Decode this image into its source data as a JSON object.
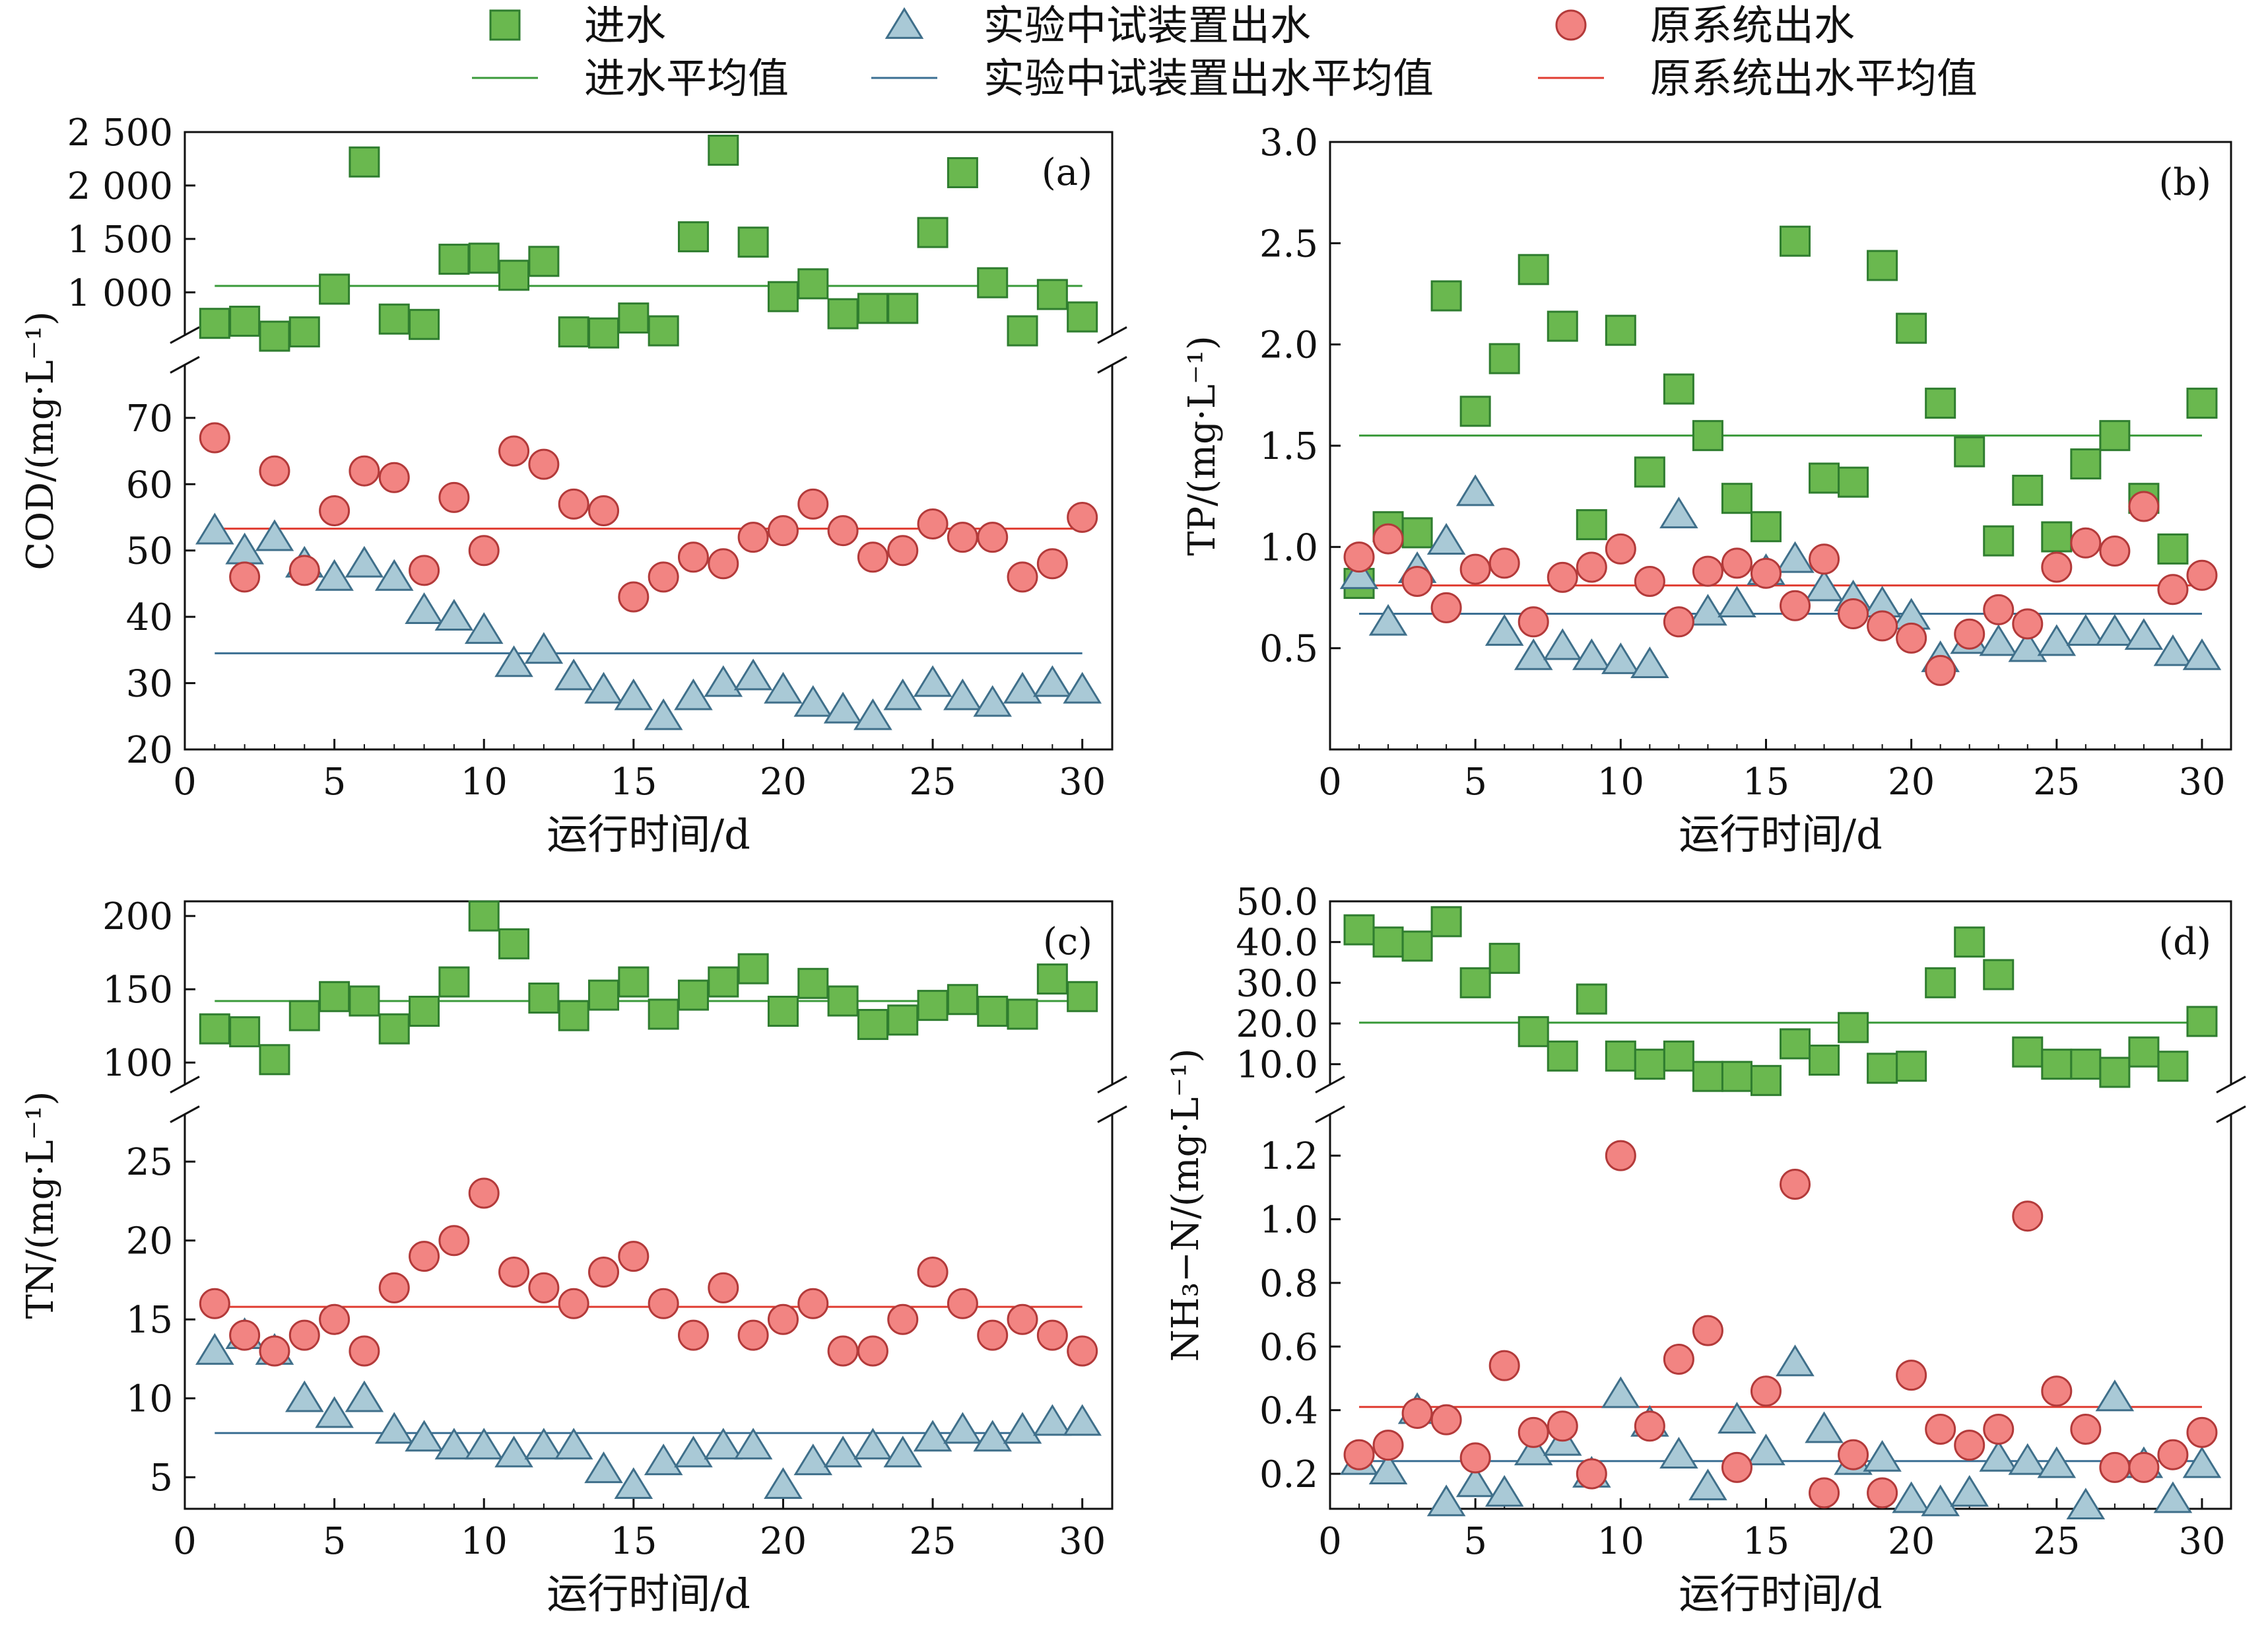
{
  "legend": {
    "items": [
      {
        "label": "进水",
        "kind": "square",
        "color": "#6ab84f"
      },
      {
        "label": "实验中试装置出水",
        "kind": "triangle",
        "color": "#a9c9d6"
      },
      {
        "label": "原系统出水",
        "kind": "circle",
        "color": "#f28482"
      },
      {
        "label": "进水平均值",
        "kind": "line",
        "color": "#3a9a3a"
      },
      {
        "label": "实验中试装置出水平均值",
        "kind": "line",
        "color": "#3b6f93"
      },
      {
        "label": "原系统出水平均值",
        "kind": "line",
        "color": "#e03c31"
      }
    ]
  },
  "colors": {
    "influent_fill": "#6ab84f",
    "influent_edge": "#2f7d2f",
    "pilot_fill": "#a9c9d6",
    "pilot_edge": "#3f6f8a",
    "original_fill": "#f28482",
    "original_edge": "#b33a3a",
    "influent_mean": "#3a9a3a",
    "pilot_mean": "#3b6f93",
    "original_mean": "#e03c31"
  },
  "chart_data": [
    {
      "id": "a",
      "type": "scatter",
      "panel_label": "(a)",
      "ylabel": "COD/(mg·L⁻¹)",
      "xlabel": "运行时间/d",
      "xlim": [
        0,
        31
      ],
      "xticks": [
        0,
        5,
        10,
        15,
        20,
        25,
        30
      ],
      "broken_axis": true,
      "upper": {
        "ylim": [
          600,
          2500
        ],
        "yticks": [
          1000,
          1500,
          2000,
          2500
        ],
        "tick_labels": [
          "1 000",
          "1 500",
          "2 000",
          "2 500"
        ]
      },
      "lower": {
        "ylim": [
          20,
          78
        ],
        "yticks": [
          20,
          30,
          40,
          50,
          60,
          70
        ],
        "tick_labels": [
          "20",
          "30",
          "40",
          "50",
          "60",
          "70"
        ]
      },
      "x": [
        1,
        2,
        3,
        4,
        5,
        6,
        7,
        8,
        9,
        10,
        11,
        12,
        13,
        14,
        15,
        16,
        17,
        18,
        19,
        20,
        21,
        22,
        23,
        24,
        25,
        26,
        27,
        28,
        29,
        30
      ],
      "series": [
        {
          "name": "进水",
          "marker": "square",
          "axis": "upper",
          "values": [
            710,
            730,
            590,
            630,
            1030,
            2220,
            750,
            700,
            1310,
            1320,
            1160,
            1290,
            630,
            620,
            760,
            640,
            1520,
            2330,
            1470,
            960,
            1080,
            800,
            850,
            850,
            1560,
            2120,
            1090,
            640,
            980,
            770
          ]
        },
        {
          "name": "实验中试装置出水",
          "marker": "triangle",
          "axis": "lower",
          "values": [
            53,
            50,
            52,
            48,
            46,
            48,
            46,
            41,
            40,
            38,
            33,
            35,
            31,
            29,
            28,
            25,
            28,
            30,
            31,
            29,
            27,
            26,
            25,
            28,
            30,
            28,
            27,
            29,
            30,
            29
          ]
        },
        {
          "name": "原系统出水",
          "marker": "circle",
          "axis": "lower",
          "values": [
            67,
            46,
            62,
            47,
            56,
            62,
            61,
            47,
            58,
            50,
            65,
            63,
            57,
            56,
            43,
            46,
            49,
            48,
            52,
            53,
            57,
            53,
            49,
            50,
            54,
            52,
            52,
            46,
            48,
            55
          ]
        }
      ],
      "means": [
        {
          "name": "进水平均值",
          "axis": "upper",
          "value": 1060
        },
        {
          "name": "实验中试装置出水平均值",
          "axis": "lower",
          "value": 34.5
        },
        {
          "name": "原系统出水平均值",
          "axis": "lower",
          "value": 53.3
        }
      ]
    },
    {
      "id": "b",
      "type": "scatter",
      "panel_label": "(b)",
      "ylabel": "TP/(mg·L⁻¹)",
      "xlabel": "运行时间/d",
      "xlim": [
        0,
        31
      ],
      "xticks": [
        0,
        5,
        10,
        15,
        20,
        25,
        30
      ],
      "broken_axis": false,
      "single": {
        "ylim": [
          0,
          3.0
        ],
        "yticks": [
          0.5,
          1.0,
          1.5,
          2.0,
          2.5,
          3.0
        ],
        "tick_labels": [
          "0.5",
          "1.0",
          "1.5",
          "2.0",
          "2.5",
          "3.0"
        ]
      },
      "x": [
        1,
        2,
        3,
        4,
        5,
        6,
        7,
        8,
        9,
        10,
        11,
        12,
        13,
        14,
        15,
        16,
        17,
        18,
        19,
        20,
        21,
        22,
        23,
        24,
        25,
        26,
        27,
        28,
        29,
        30
      ],
      "series": [
        {
          "name": "进水",
          "marker": "square",
          "axis": "single",
          "values": [
            0.82,
            1.1,
            1.07,
            2.24,
            1.67,
            1.93,
            2.37,
            2.09,
            1.11,
            2.07,
            1.37,
            1.78,
            1.55,
            1.24,
            1.1,
            2.51,
            1.34,
            1.32,
            2.39,
            2.08,
            1.71,
            1.47,
            1.03,
            1.28,
            1.05,
            1.41,
            1.55,
            1.24,
            0.99,
            1.71
          ]
        },
        {
          "name": "实验中试装置出水",
          "marker": "triangle",
          "axis": "single",
          "values": [
            0.86,
            0.63,
            0.89,
            1.03,
            1.27,
            0.58,
            0.46,
            0.51,
            0.46,
            0.44,
            0.42,
            1.16,
            0.68,
            0.72,
            0.88,
            0.94,
            0.8,
            0.75,
            0.72,
            0.66,
            0.45,
            0.54,
            0.53,
            0.5,
            0.53,
            0.58,
            0.58,
            0.56,
            0.48,
            0.46
          ]
        },
        {
          "name": "原系统出水",
          "marker": "circle",
          "axis": "single",
          "values": [
            0.95,
            1.04,
            0.83,
            0.7,
            0.89,
            0.92,
            0.63,
            0.85,
            0.9,
            0.99,
            0.83,
            0.63,
            0.88,
            0.92,
            0.87,
            0.71,
            0.94,
            0.67,
            0.61,
            0.55,
            0.39,
            0.57,
            0.69,
            0.62,
            0.9,
            1.02,
            0.98,
            1.2,
            0.79,
            0.86
          ]
        }
      ],
      "means": [
        {
          "name": "进水平均值",
          "axis": "single",
          "value": 1.55
        },
        {
          "name": "实验中试装置出水平均值",
          "axis": "single",
          "value": 0.67
        },
        {
          "name": "原系统出水平均值",
          "axis": "single",
          "value": 0.81
        }
      ]
    },
    {
      "id": "c",
      "type": "scatter",
      "panel_label": "(c)",
      "ylabel": "TN/(mg·L⁻¹)",
      "xlabel": "运行时间/d",
      "xlim": [
        0,
        31
      ],
      "xticks": [
        0,
        5,
        10,
        15,
        20,
        25,
        30
      ],
      "broken_axis": true,
      "upper": {
        "ylim": [
          85,
          210
        ],
        "yticks": [
          100,
          150,
          200
        ],
        "tick_labels": [
          "100",
          "150",
          "200"
        ]
      },
      "lower": {
        "ylim": [
          3,
          28
        ],
        "yticks": [
          5,
          10,
          15,
          20,
          25
        ],
        "tick_labels": [
          "5",
          "10",
          "15",
          "20",
          "25"
        ]
      },
      "x": [
        1,
        2,
        3,
        4,
        5,
        6,
        7,
        8,
        9,
        10,
        11,
        12,
        13,
        14,
        15,
        16,
        17,
        18,
        19,
        20,
        21,
        22,
        23,
        24,
        25,
        26,
        27,
        28,
        29,
        30
      ],
      "series": [
        {
          "name": "进水",
          "marker": "square",
          "axis": "upper",
          "values": [
            123,
            121,
            102,
            132,
            145,
            142,
            123,
            135,
            155,
            200,
            181,
            144,
            132,
            146,
            155,
            133,
            146,
            155,
            164,
            135,
            154,
            142,
            126,
            129,
            139,
            143,
            135,
            133,
            157,
            145
          ]
        },
        {
          "name": "实验中试装置出水",
          "marker": "triangle",
          "axis": "lower",
          "values": [
            13,
            14,
            13,
            10,
            9,
            10,
            8,
            7.5,
            7,
            7,
            6.5,
            7,
            7,
            5.5,
            4.5,
            6,
            6.5,
            7,
            7,
            4.5,
            6,
            6.5,
            7,
            6.5,
            7.5,
            8,
            7.5,
            8,
            8.5,
            8.5
          ]
        },
        {
          "name": "原系统出水",
          "marker": "circle",
          "axis": "lower",
          "values": [
            16,
            14,
            13,
            14,
            15,
            13,
            17,
            19,
            20,
            23,
            18,
            17,
            16,
            18,
            19,
            16,
            14,
            17,
            14,
            15,
            16,
            13,
            13,
            15,
            18,
            16,
            14,
            15,
            14,
            13
          ]
        }
      ],
      "means": [
        {
          "name": "进水平均值",
          "axis": "upper",
          "value": 142
        },
        {
          "name": "实验中试装置出水平均值",
          "axis": "lower",
          "value": 7.8
        },
        {
          "name": "原系统出水平均值",
          "axis": "lower",
          "value": 15.8
        }
      ]
    },
    {
      "id": "d",
      "type": "scatter",
      "panel_label": "(d)",
      "ylabel": "NH₃−N/(mg·L⁻¹)",
      "xlabel": "运行时间/d",
      "xlim": [
        0,
        31
      ],
      "xticks": [
        0,
        5,
        10,
        15,
        20,
        25,
        30
      ],
      "broken_axis": true,
      "upper": {
        "ylim": [
          5,
          50
        ],
        "yticks": [
          10,
          20,
          30,
          40,
          50
        ],
        "tick_labels": [
          "10.0",
          "20.0",
          "30.0",
          "40.0",
          "50.0"
        ]
      },
      "lower": {
        "ylim": [
          0.09,
          1.33
        ],
        "yticks": [
          0.2,
          0.4,
          0.6,
          0.8,
          1.0,
          1.2
        ],
        "tick_labels": [
          "0.2",
          "0.4",
          "0.6",
          "0.8",
          "1.0",
          "1.2"
        ]
      },
      "x": [
        1,
        2,
        3,
        4,
        5,
        6,
        7,
        8,
        9,
        10,
        11,
        12,
        13,
        14,
        15,
        16,
        17,
        18,
        19,
        20,
        21,
        22,
        23,
        24,
        25,
        26,
        27,
        28,
        29,
        30
      ],
      "series": [
        {
          "name": "进水",
          "marker": "square",
          "axis": "upper",
          "values": [
            43,
            40,
            39,
            45,
            30,
            36,
            18,
            12,
            26,
            12,
            10,
            12,
            7,
            7,
            6,
            15,
            11,
            19,
            9,
            9.5,
            30,
            40,
            32,
            13,
            10,
            10,
            8,
            13,
            9.5,
            20.5
          ]
        },
        {
          "name": "实验中试装置出水",
          "marker": "triangle",
          "axis": "lower",
          "values": [
            0.24,
            0.21,
            0.4,
            0.11,
            0.17,
            0.14,
            0.27,
            0.3,
            0.2,
            0.45,
            0.36,
            0.26,
            0.16,
            0.37,
            0.27,
            0.55,
            0.34,
            0.24,
            0.25,
            0.12,
            0.11,
            0.14,
            0.25,
            0.24,
            0.23,
            0.1,
            0.44,
            0.23,
            0.12,
            0.23
          ]
        },
        {
          "name": "原系统出水",
          "marker": "circle",
          "axis": "lower",
          "values": [
            0.26,
            0.29,
            0.39,
            0.37,
            0.25,
            0.54,
            0.33,
            0.35,
            0.2,
            1.2,
            0.35,
            0.56,
            0.65,
            0.22,
            0.46,
            1.11,
            0.14,
            0.26,
            0.14,
            0.51,
            0.34,
            0.29,
            0.34,
            1.01,
            0.46,
            0.34,
            0.22,
            0.22,
            0.26,
            0.33
          ]
        }
      ],
      "means": [
        {
          "name": "进水平均值",
          "axis": "upper",
          "value": 20.2
        },
        {
          "name": "实验中试装置出水平均值",
          "axis": "lower",
          "value": 0.24
        },
        {
          "name": "原系统出水平均值",
          "axis": "lower",
          "value": 0.41
        }
      ]
    }
  ]
}
